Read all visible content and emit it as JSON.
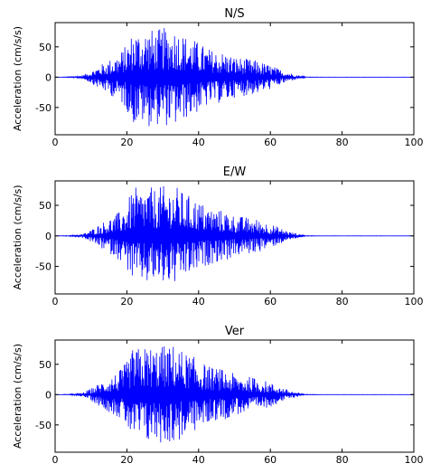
{
  "chart_data": [
    {
      "type": "line",
      "title": "N/S",
      "ylabel": "Acceleration (cm/s/s)",
      "xlim": [
        0,
        100
      ],
      "ylim": [
        -95,
        90
      ],
      "xticks": [
        0,
        20,
        40,
        60,
        80,
        100
      ],
      "yticks": [
        50,
        0,
        -50
      ],
      "color": "#0000ff",
      "series": [
        {
          "x": [
            0,
            2,
            4,
            6,
            8,
            10,
            12,
            14,
            16,
            18,
            20,
            21,
            22,
            23,
            24,
            25,
            26,
            27,
            28,
            29,
            30,
            31,
            32,
            33,
            34,
            35,
            36,
            38,
            40,
            42,
            44,
            46,
            48,
            50,
            52,
            54,
            56,
            58,
            60,
            62,
            64,
            66,
            68,
            70,
            75,
            80,
            85,
            90,
            95,
            100
          ],
          "envelope": [
            0,
            0.3,
            0.7,
            1.5,
            4,
            10,
            18,
            25,
            32,
            40,
            55,
            68,
            80,
            78,
            76,
            80,
            82,
            79,
            78,
            80,
            82,
            81,
            80,
            83,
            80,
            76,
            70,
            65,
            58,
            50,
            45,
            43,
            40,
            34,
            32,
            30,
            28,
            24,
            20,
            15,
            10,
            6,
            3,
            0.5,
            0.2,
            0.2,
            0.2,
            0.2,
            0.2,
            0.2
          ]
        }
      ]
    },
    {
      "type": "line",
      "title": "E/W",
      "ylabel": "Acceleration (cm/s/s)",
      "xlim": [
        0,
        100
      ],
      "ylim": [
        -95,
        90
      ],
      "xticks": [
        0,
        20,
        40,
        60,
        80,
        100
      ],
      "yticks": [
        50,
        0,
        -50
      ],
      "color": "#0000ff",
      "series": [
        {
          "x": [
            0,
            2,
            4,
            6,
            8,
            10,
            12,
            14,
            16,
            18,
            20,
            21,
            22,
            23,
            24,
            25,
            26,
            27,
            28,
            29,
            30,
            31,
            32,
            33,
            34,
            35,
            36,
            38,
            40,
            42,
            44,
            46,
            48,
            50,
            52,
            54,
            56,
            58,
            60,
            62,
            64,
            66,
            68,
            70,
            75,
            80,
            85,
            90,
            95,
            100
          ],
          "envelope": [
            0,
            0.3,
            0.7,
            1.5,
            4,
            10,
            18,
            25,
            32,
            40,
            55,
            68,
            80,
            78,
            76,
            80,
            82,
            79,
            78,
            80,
            82,
            81,
            80,
            83,
            80,
            76,
            70,
            65,
            58,
            50,
            45,
            43,
            40,
            34,
            32,
            30,
            28,
            24,
            20,
            15,
            10,
            6,
            3,
            0.5,
            0.2,
            0.2,
            0.2,
            0.2,
            0.2,
            0.2
          ]
        }
      ]
    },
    {
      "type": "line",
      "title": "Ver",
      "ylabel": "Acceleration (cm/s/s)",
      "xlim": [
        0,
        100
      ],
      "ylim": [
        -95,
        90
      ],
      "xticks": [
        0,
        20,
        40,
        60,
        80,
        100
      ],
      "yticks": [
        50,
        0,
        -50
      ],
      "color": "#0000ff",
      "series": [
        {
          "x": [
            0,
            2,
            4,
            6,
            8,
            10,
            12,
            14,
            16,
            18,
            20,
            21,
            22,
            23,
            24,
            25,
            26,
            27,
            28,
            29,
            30,
            31,
            32,
            33,
            34,
            35,
            36,
            38,
            40,
            42,
            44,
            46,
            48,
            50,
            52,
            54,
            56,
            58,
            60,
            62,
            64,
            66,
            68,
            70,
            75,
            80,
            85,
            90,
            95,
            100
          ],
          "envelope": [
            0,
            0.3,
            0.7,
            1.5,
            4,
            10,
            18,
            25,
            32,
            40,
            55,
            68,
            80,
            78,
            76,
            80,
            82,
            79,
            78,
            80,
            82,
            81,
            80,
            83,
            80,
            76,
            70,
            65,
            58,
            50,
            45,
            43,
            40,
            34,
            32,
            30,
            28,
            24,
            20,
            15,
            10,
            6,
            3,
            0.5,
            0.2,
            0.2,
            0.2,
            0.2,
            0.2,
            0.2
          ]
        }
      ]
    }
  ]
}
